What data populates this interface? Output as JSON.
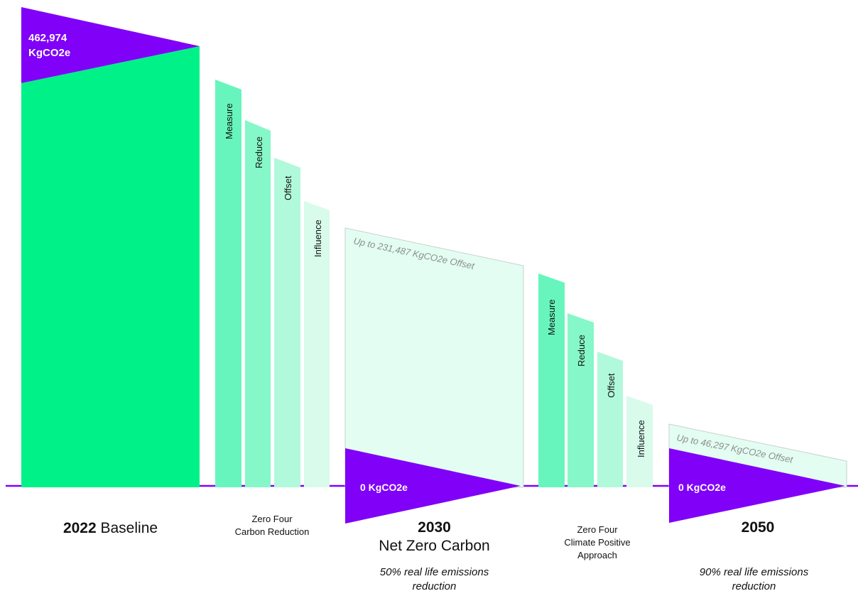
{
  "colors": {
    "purple": "#8000f8",
    "baseline_green": "#00f187",
    "step_1": "#67f5bd",
    "step_2": "#86f7c8",
    "step_3": "#b1f9db",
    "step_4": "#d8fbec",
    "offset_fill": "#e3fdf3",
    "offset_stroke": "#c8d2cd",
    "offset_text": "#8a8f8c"
  },
  "baseline": {
    "value": "462,974",
    "unit": "KgCO2e",
    "year": "2022",
    "label": "Baseline"
  },
  "phase1": {
    "name_line1": "Zero Four",
    "name_line2": "Carbon Reduction",
    "steps": [
      "Measure",
      "Reduce",
      "Offset",
      "Influence"
    ]
  },
  "target_2030": {
    "offset_label": "Up to 231,487 KgCO2e Offset",
    "net_value": "0 KgCO2e",
    "year": "2030",
    "title": "Net Zero Carbon",
    "note_line1": "50% real life emissions",
    "note_line2": "reduction"
  },
  "phase2": {
    "name_line1": "Zero Four",
    "name_line2": "Climate Positive",
    "name_line3": "Approach",
    "steps": [
      "Measure",
      "Reduce",
      "Offset",
      "Influence"
    ]
  },
  "target_2050": {
    "offset_label": "Up to 46,297 KgCO2e Offset",
    "net_value": "0 KgCO2e",
    "year": "2050",
    "note_line1": "90% real life emissions",
    "note_line2": "reduction"
  }
}
